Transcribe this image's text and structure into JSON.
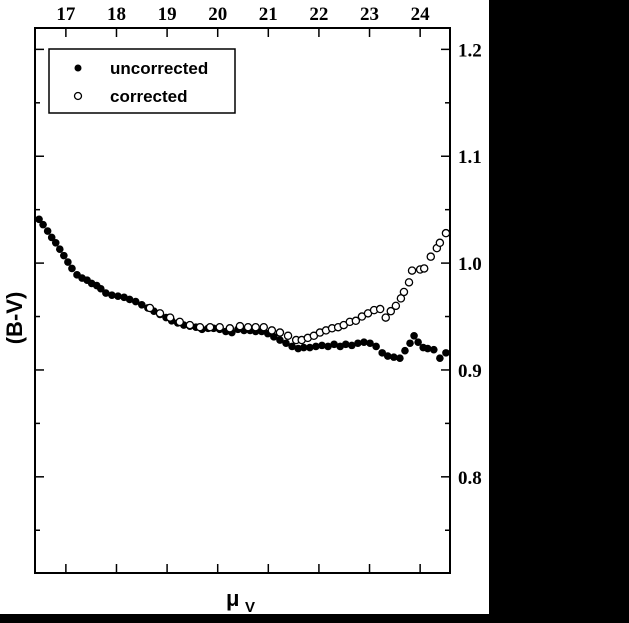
{
  "chart_data": {
    "type": "scatter",
    "title": "",
    "xlabel": "μ_V",
    "xlabel_main": "μ",
    "xlabel_sub": "V",
    "ylabel": "(B-V)",
    "xlim": [
      16.39,
      24.59
    ],
    "ylim": [
      0.71,
      1.22
    ],
    "x_ticks_top": [
      17,
      18,
      19,
      20,
      21,
      22,
      23,
      24
    ],
    "x_tick_labels_top": [
      "17",
      "18",
      "19",
      "20",
      "21",
      "22",
      "23",
      "24"
    ],
    "y_ticks_right": [
      0.8,
      0.9,
      1.0,
      1.1,
      1.2
    ],
    "y_tick_labels_right": [
      "0.8",
      "0.9",
      "1.0",
      "1.1",
      "1.2"
    ],
    "y_minor_ticks": [
      0.75,
      0.85,
      0.95,
      1.05,
      1.15
    ],
    "grid": false,
    "legend_position": "upper left",
    "series": [
      {
        "name": "uncorrected",
        "marker": "filled-circle",
        "x": [
          16.47,
          16.55,
          16.64,
          16.72,
          16.8,
          16.88,
          16.96,
          17.04,
          17.12,
          17.22,
          17.32,
          17.42,
          17.51,
          17.61,
          17.69,
          17.79,
          17.91,
          18.03,
          18.15,
          18.26,
          18.38,
          18.5,
          18.62,
          18.74,
          18.86,
          18.98,
          19.09,
          19.21,
          19.33,
          19.45,
          19.57,
          19.69,
          19.81,
          19.92,
          20.04,
          20.16,
          20.28,
          20.4,
          20.52,
          20.64,
          20.75,
          20.87,
          20.99,
          21.11,
          21.23,
          21.35,
          21.47,
          21.59,
          21.7,
          21.82,
          21.94,
          22.06,
          22.18,
          22.3,
          22.42,
          22.53,
          22.65,
          22.77,
          22.89,
          23.01,
          23.13,
          23.25,
          23.36,
          23.48,
          23.6,
          23.7,
          23.8,
          23.88,
          23.96,
          24.06,
          24.15,
          24.27,
          24.39,
          24.51
        ],
        "y": [
          1.041,
          1.036,
          1.03,
          1.024,
          1.019,
          1.013,
          1.007,
          1.001,
          0.995,
          0.989,
          0.986,
          0.984,
          0.981,
          0.979,
          0.976,
          0.972,
          0.97,
          0.969,
          0.968,
          0.966,
          0.964,
          0.961,
          0.958,
          0.955,
          0.952,
          0.949,
          0.946,
          0.944,
          0.942,
          0.941,
          0.94,
          0.938,
          0.939,
          0.939,
          0.938,
          0.936,
          0.935,
          0.938,
          0.937,
          0.937,
          0.936,
          0.936,
          0.934,
          0.931,
          0.928,
          0.925,
          0.922,
          0.92,
          0.921,
          0.921,
          0.922,
          0.923,
          0.922,
          0.924,
          0.922,
          0.924,
          0.923,
          0.925,
          0.926,
          0.925,
          0.922,
          0.916,
          0.913,
          0.912,
          0.911,
          0.918,
          0.925,
          0.932,
          0.926,
          0.921,
          0.92,
          0.919,
          0.911,
          0.916
        ]
      },
      {
        "name": "corrected",
        "marker": "open-circle",
        "x": [
          18.66,
          18.86,
          19.06,
          19.25,
          19.45,
          19.65,
          19.85,
          20.04,
          20.24,
          20.44,
          20.6,
          20.75,
          20.91,
          21.07,
          21.23,
          21.39,
          21.55,
          21.66,
          21.78,
          21.9,
          22.02,
          22.14,
          22.26,
          22.38,
          22.49,
          22.61,
          22.73,
          22.85,
          22.97,
          23.09,
          23.21,
          23.32,
          23.42,
          23.52,
          23.62,
          23.68,
          23.78,
          23.84,
          24.0,
          24.08,
          24.21,
          24.33,
          24.39,
          24.51
        ],
        "y": [
          0.958,
          0.953,
          0.949,
          0.945,
          0.942,
          0.94,
          0.94,
          0.94,
          0.939,
          0.941,
          0.94,
          0.94,
          0.94,
          0.937,
          0.935,
          0.932,
          0.928,
          0.928,
          0.93,
          0.932,
          0.935,
          0.937,
          0.939,
          0.94,
          0.942,
          0.945,
          0.946,
          0.95,
          0.953,
          0.956,
          0.957,
          0.949,
          0.955,
          0.96,
          0.967,
          0.973,
          0.982,
          0.993,
          0.994,
          0.995,
          1.006,
          1.014,
          1.019,
          1.028
        ]
      }
    ]
  },
  "legend": {
    "items": [
      {
        "label": "uncorrected",
        "marker": "filled-circle"
      },
      {
        "label": "corrected",
        "marker": "open-circle"
      }
    ]
  },
  "colors": {
    "background": "#000000",
    "plot_background": "#ffffff",
    "ink": "#000000"
  }
}
